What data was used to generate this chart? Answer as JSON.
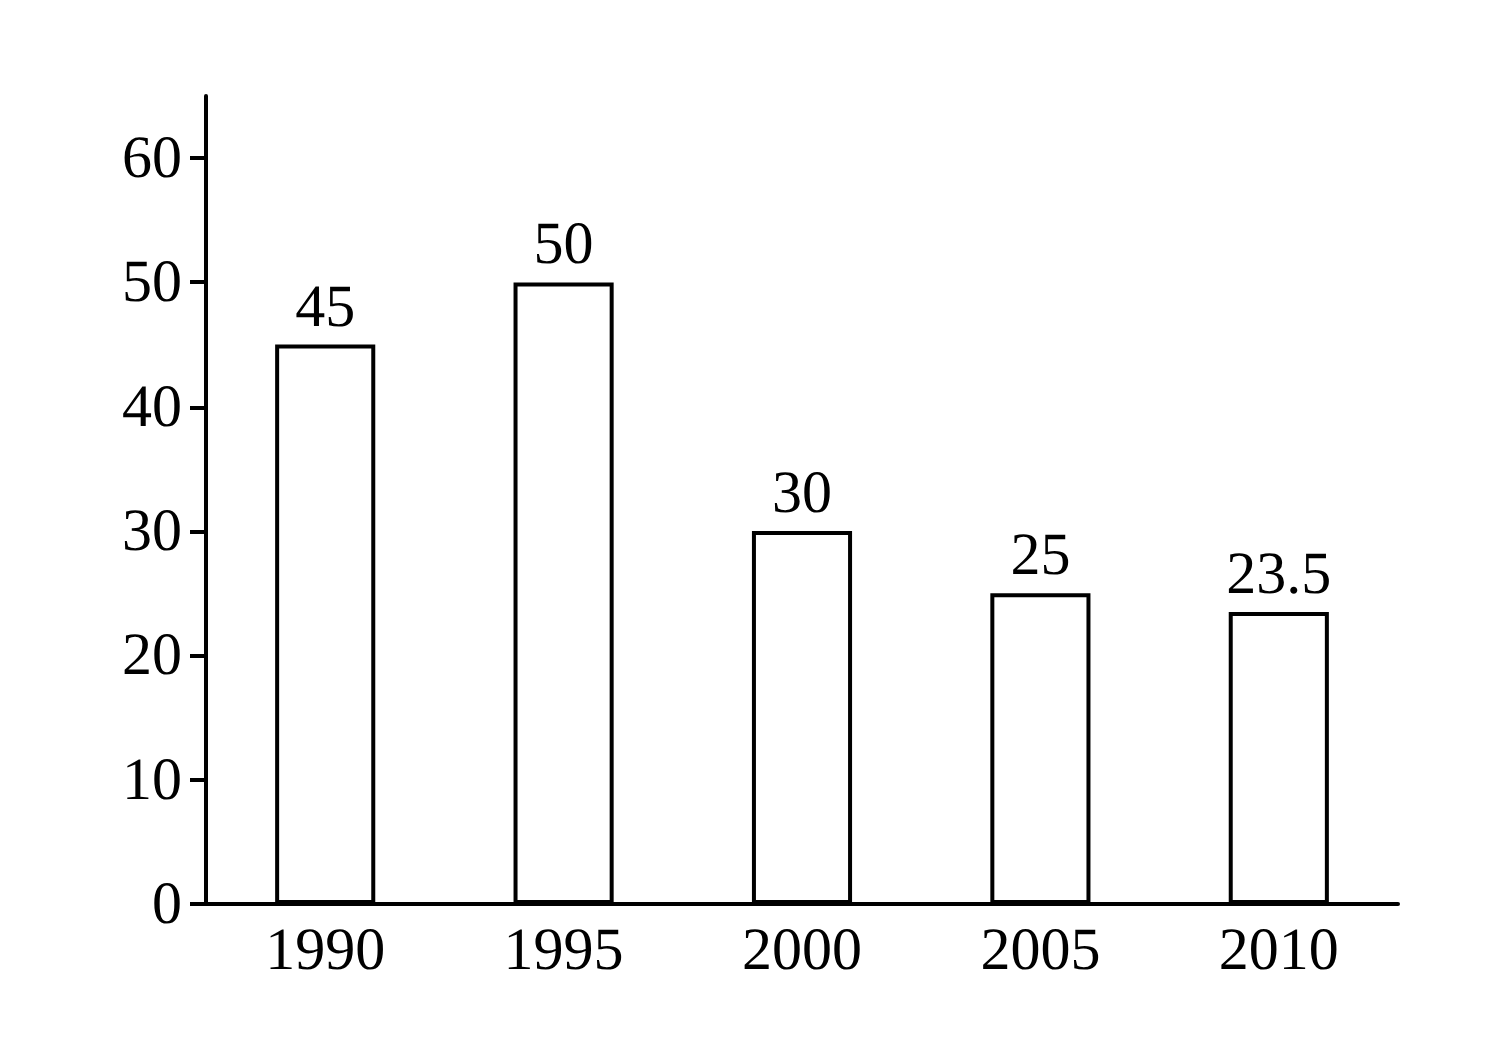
{
  "chart_data": {
    "type": "bar",
    "categories": [
      "1990",
      "1995",
      "2000",
      "2005",
      "2010"
    ],
    "values": [
      45,
      50,
      30,
      25,
      23.5
    ],
    "color": "#ffffff",
    "ylim": [
      0,
      65
    ],
    "yticks": [
      0,
      10,
      20,
      30,
      40,
      50,
      60
    ],
    "grid": false,
    "data_labels": true
  }
}
